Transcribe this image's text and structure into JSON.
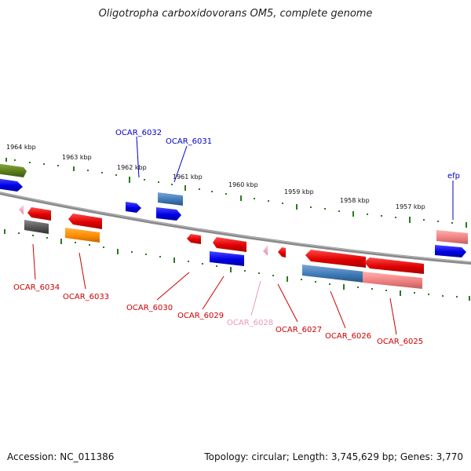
{
  "title": "Oligotropha carboxidovorans OM5, complete genome",
  "accession_text": "Accession: NC_011386",
  "summary_text": "Topology: circular; Length: 3,745,629 bp; Genes: 3,770",
  "colors": {
    "backbone": "#808080",
    "ticks": "#2a7a1e",
    "forward_label": "#0000c8",
    "reverse_label": "#cc0000",
    "pseudo_label": "#e89ab8"
  },
  "kbp_ticks": [
    {
      "label": "1964 kbp"
    },
    {
      "label": "1963 kbp"
    },
    {
      "label": "1962 kbp"
    },
    {
      "label": "1961 kbp"
    },
    {
      "label": "1960 kbp"
    },
    {
      "label": "1959 kbp"
    },
    {
      "label": "1958 kbp"
    },
    {
      "label": "1957 kbp"
    }
  ],
  "gene_labels": [
    {
      "name": "OCAR_6032",
      "strand": "forward"
    },
    {
      "name": "OCAR_6031",
      "strand": "forward"
    },
    {
      "name": "efp",
      "strand": "forward"
    },
    {
      "name": "OCAR_6034",
      "strand": "reverse"
    },
    {
      "name": "OCAR_6033",
      "strand": "reverse"
    },
    {
      "name": "OCAR_6030",
      "strand": "reverse"
    },
    {
      "name": "OCAR_6029",
      "strand": "reverse"
    },
    {
      "name": "OCAR_6028",
      "strand": "pseudo"
    },
    {
      "name": "OCAR_6027",
      "strand": "reverse"
    },
    {
      "name": "OCAR_6026",
      "strand": "reverse"
    },
    {
      "name": "OCAR_6025",
      "strand": "reverse"
    }
  ]
}
